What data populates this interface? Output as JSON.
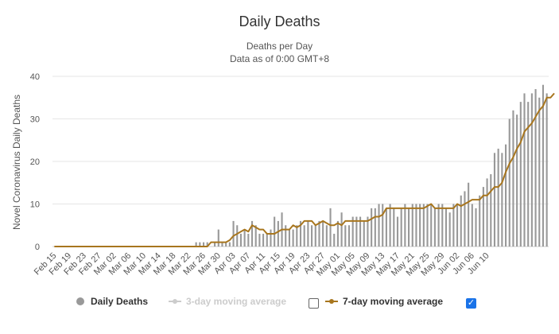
{
  "chart_data": {
    "type": "bar",
    "title": "Daily Deaths",
    "subtitle": [
      "Deaths per Day",
      "Data as of 0:00 GMT+8"
    ],
    "ylabel": "Novel Coronavirus Daily Deaths",
    "ylim": [
      0,
      40
    ],
    "yticks": [
      0,
      10,
      20,
      30,
      40
    ],
    "start_date": "Feb 15",
    "xtick_labels": [
      "Feb 15",
      "Feb 19",
      "Feb 23",
      "Feb 27",
      "Mar 02",
      "Mar 06",
      "Mar 10",
      "Mar 14",
      "Mar 18",
      "Mar 22",
      "Mar 26",
      "Mar 30",
      "Apr 03",
      "Apr 07",
      "Apr 11",
      "Apr 15",
      "Apr 19",
      "Apr 23",
      "Apr 27",
      "May 01",
      "May 05",
      "May 09",
      "May 13",
      "May 17",
      "May 21",
      "May 25",
      "May 29",
      "Jun 02",
      "Jun 06",
      "Jun 10"
    ],
    "series": [
      {
        "name": "Daily Deaths",
        "color": "#999999",
        "values": [
          0,
          0,
          0,
          0,
          0,
          0,
          0,
          0,
          0,
          0,
          0,
          0,
          0,
          0,
          0,
          0,
          0,
          0,
          0,
          0,
          0,
          0,
          0,
          0,
          0,
          0,
          0,
          0,
          0,
          0,
          0,
          0,
          0,
          0,
          0,
          0,
          0,
          0,
          1,
          1,
          1,
          1,
          0,
          1,
          4,
          1,
          1,
          1,
          6,
          5,
          3,
          4,
          3,
          6,
          5,
          3,
          3,
          3,
          4,
          7,
          6,
          8,
          5,
          4,
          4,
          5,
          6,
          5,
          6,
          5,
          5,
          6,
          6,
          5,
          9,
          3,
          6,
          8,
          5,
          5,
          7,
          7,
          7,
          6,
          7,
          9,
          9,
          10,
          10,
          9,
          10,
          9,
          7,
          9,
          10,
          9,
          10,
          10,
          10,
          10,
          10,
          10,
          9,
          10,
          10,
          9,
          8,
          10,
          10,
          12,
          13,
          15,
          10,
          9,
          12,
          14,
          16,
          17,
          22,
          23,
          22,
          24,
          30,
          32,
          31,
          34,
          36,
          34,
          36,
          37,
          35,
          38,
          36
        ]
      },
      {
        "name": "3-day moving average",
        "color": "#cccccc",
        "visible": false
      },
      {
        "name": "7-day moving average",
        "color": "#a8761e",
        "visible": true,
        "values": [
          0,
          0,
          0,
          0,
          0,
          0,
          0,
          0,
          0,
          0,
          0,
          0,
          0,
          0,
          0,
          0,
          0,
          0,
          0,
          0,
          0,
          0,
          0,
          0,
          0,
          0,
          0,
          0,
          0,
          0,
          0,
          0,
          0,
          0,
          0,
          0,
          0,
          0,
          0,
          0,
          0,
          0,
          1,
          1,
          1,
          1,
          1,
          1.5,
          2.5,
          3,
          3.5,
          4,
          3.5,
          5,
          4.5,
          4,
          4,
          3,
          3,
          3,
          3.5,
          4,
          4,
          4,
          5,
          4.5,
          5,
          6,
          6,
          6,
          5,
          5.5,
          6,
          5.5,
          5,
          5,
          5.5,
          5,
          6,
          6,
          6,
          6,
          6,
          6,
          6,
          6.5,
          7,
          7,
          7.5,
          9,
          9,
          9,
          9,
          9,
          9,
          9,
          9,
          9,
          9,
          9,
          9.5,
          10,
          9,
          9,
          9,
          9,
          9,
          9,
          10,
          9.5,
          10,
          10.5,
          11,
          11,
          11,
          12,
          12,
          13,
          14,
          14,
          15,
          17.5,
          19.5,
          21,
          23,
          24.5,
          27,
          28,
          29,
          30.5,
          32,
          33,
          35,
          35,
          36
        ]
      }
    ],
    "legend": "bottom-center"
  },
  "legend": {
    "daily": "Daily Deaths",
    "three_day": "3-day moving average",
    "seven_day": "7-day moving average",
    "three_day_checked": false,
    "seven_day_checked": true
  }
}
